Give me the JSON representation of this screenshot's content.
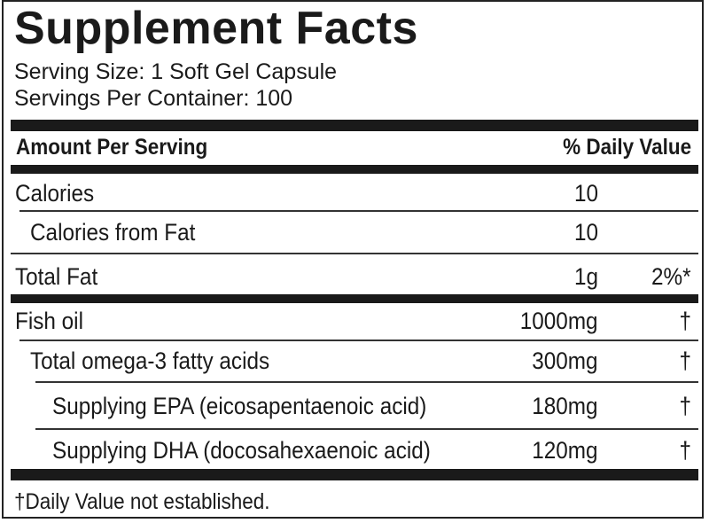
{
  "title": "Supplement Facts",
  "serving_size": "Serving Size: 1 Soft Gel Capsule",
  "servings_per_container": "Servings Per Container: 100",
  "header": {
    "amount": "Amount Per Serving",
    "daily_value": "% Daily Value"
  },
  "rows": [
    {
      "label": "Calories",
      "amount": "10",
      "dv": ""
    },
    {
      "label": "Calories from Fat",
      "amount": "10",
      "dv": ""
    },
    {
      "label": "Total Fat",
      "amount": "1g",
      "dv": "2%*"
    },
    {
      "label": "Fish oil",
      "amount": "1000mg",
      "dv": "†"
    },
    {
      "label": "Total omega-3 fatty acids",
      "amount": "300mg",
      "dv": "†"
    },
    {
      "label": "Supplying EPA (eicosapentaenoic acid)",
      "amount": "180mg",
      "dv": "†"
    },
    {
      "label": "Supplying DHA (docosahexaenoic acid)",
      "amount": "120mg",
      "dv": "†"
    }
  ],
  "footnote": "†Daily Value not established."
}
